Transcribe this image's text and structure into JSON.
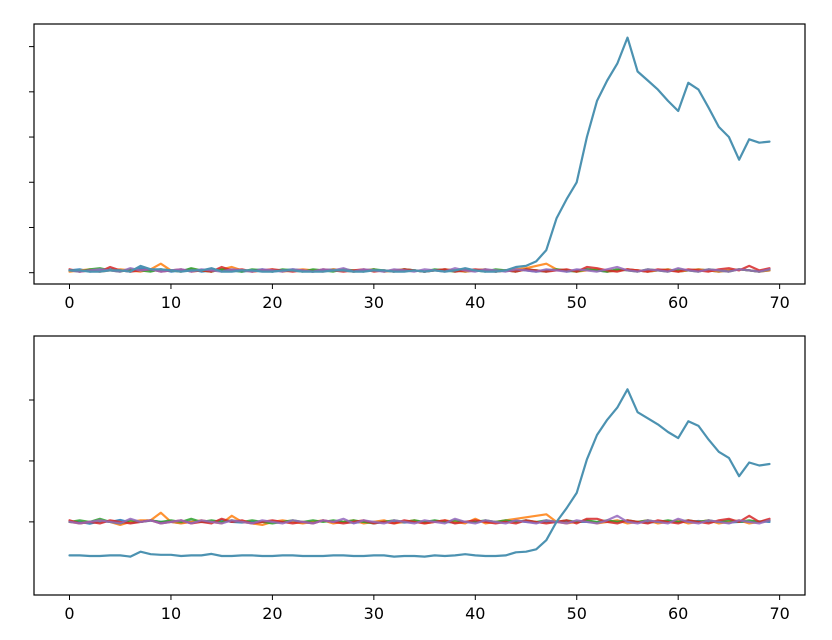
{
  "chart_data": [
    {
      "type": "line",
      "title": "",
      "xlabel": "",
      "ylabel": "",
      "xlim": [
        -3.5,
        72.5
      ],
      "ylim": [
        -1.0,
        22.0
      ],
      "xticks": [
        0,
        10,
        20,
        30,
        40,
        50,
        60,
        70
      ],
      "xtick_labels": [
        "0",
        "10",
        "20",
        "30",
        "40",
        "50",
        "60",
        "70"
      ],
      "yticks": [
        0,
        4,
        8,
        12,
        16,
        20
      ],
      "ytick_labels_visible": false,
      "legend": "none",
      "grid": false,
      "series": [
        {
          "color": "#1f77b4",
          "values": [
            0.2,
            0.3,
            0.1,
            0.2,
            0.3,
            0.2,
            0.1,
            0.4,
            0.2,
            0.3,
            0.1,
            0.2,
            0.3,
            0.1,
            0.2,
            0.3,
            0.2,
            0.1,
            0.2,
            0.3,
            0.1,
            0.2,
            0.3,
            0.2,
            0.1,
            0.2,
            0.3,
            0.2,
            0.1,
            0.2,
            0.3,
            0.1,
            0.2,
            0.3,
            0.2,
            0.1,
            0.2,
            0.3,
            0.2,
            0.1,
            0.2,
            0.3,
            0.1,
            0.2,
            0.3,
            0.2,
            0.1,
            0.2,
            0.3,
            0.1,
            0.2,
            0.3,
            0.2,
            0.1,
            0.2,
            0.3,
            0.2,
            0.1,
            0.2,
            0.3,
            0.1,
            0.2,
            0.3,
            0.2,
            0.1,
            0.2,
            0.3,
            0.2,
            0.1,
            0.2
          ]
        },
        {
          "color": "#ff7f0e",
          "values": [
            0.1,
            0.2,
            0.3,
            0.1,
            0.2,
            0.3,
            0.2,
            0.1,
            0.3,
            0.8,
            0.2,
            0.1,
            0.3,
            0.2,
            0.1,
            0.3,
            0.5,
            0.2,
            0.1,
            0.2,
            0.3,
            0.1,
            0.2,
            0.3,
            0.2,
            0.1,
            0.3,
            0.2,
            0.1,
            0.2,
            0.3,
            0.1,
            0.2,
            0.3,
            0.2,
            0.1,
            0.2,
            0.3,
            0.2,
            0.1,
            0.2,
            0.3,
            0.1,
            0.2,
            0.3,
            0.4,
            0.6,
            0.8,
            0.3,
            0.2,
            0.1,
            0.2,
            0.3,
            0.1,
            0.2,
            0.3,
            0.2,
            0.1,
            0.2,
            0.3,
            0.1,
            0.2,
            0.3,
            0.2,
            0.1,
            0.2,
            0.3,
            0.2,
            0.1,
            0.2
          ]
        },
        {
          "color": "#2ca02c",
          "values": [
            0.2,
            0.1,
            0.3,
            0.4,
            0.2,
            0.1,
            0.3,
            0.2,
            0.1,
            0.3,
            0.2,
            0.1,
            0.4,
            0.2,
            0.1,
            0.3,
            0.2,
            0.1,
            0.3,
            0.2,
            0.1,
            0.3,
            0.2,
            0.1,
            0.3,
            0.2,
            0.1,
            0.3,
            0.2,
            0.1,
            0.3,
            0.2,
            0.1,
            0.3,
            0.2,
            0.1,
            0.3,
            0.2,
            0.1,
            0.3,
            0.2,
            0.1,
            0.3,
            0.2,
            0.1,
            0.3,
            0.2,
            0.1,
            0.3,
            0.2,
            0.1,
            0.3,
            0.2,
            0.1,
            0.3,
            0.2,
            0.1,
            0.3,
            0.2,
            0.1,
            0.3,
            0.2,
            0.1,
            0.3,
            0.2,
            0.1,
            0.3,
            0.2,
            0.1,
            0.3
          ]
        },
        {
          "color": "#d62728",
          "values": [
            0.3,
            0.1,
            0.2,
            0.1,
            0.5,
            0.2,
            0.1,
            0.2,
            0.3,
            0.1,
            0.2,
            0.3,
            0.1,
            0.2,
            0.1,
            0.5,
            0.2,
            0.3,
            0.1,
            0.2,
            0.3,
            0.2,
            0.1,
            0.2,
            0.1,
            0.3,
            0.2,
            0.1,
            0.2,
            0.3,
            0.1,
            0.2,
            0.1,
            0.3,
            0.2,
            0.1,
            0.2,
            0.3,
            0.1,
            0.2,
            0.3,
            0.2,
            0.1,
            0.2,
            0.1,
            0.3,
            0.2,
            0.1,
            0.2,
            0.3,
            0.1,
            0.5,
            0.4,
            0.2,
            0.1,
            0.3,
            0.2,
            0.1,
            0.3,
            0.2,
            0.1,
            0.3,
            0.2,
            0.1,
            0.3,
            0.4,
            0.2,
            0.6,
            0.2,
            0.4
          ]
        },
        {
          "color": "#9467bd",
          "values": [
            0.2,
            0.1,
            0.2,
            0.3,
            0.2,
            0.1,
            0.4,
            0.2,
            0.3,
            0.1,
            0.2,
            0.3,
            0.1,
            0.3,
            0.2,
            0.1,
            0.3,
            0.2,
            0.1,
            0.3,
            0.2,
            0.1,
            0.3,
            0.2,
            0.1,
            0.3,
            0.2,
            0.4,
            0.1,
            0.3,
            0.2,
            0.1,
            0.3,
            0.2,
            0.1,
            0.3,
            0.2,
            0.1,
            0.4,
            0.2,
            0.1,
            0.3,
            0.2,
            0.1,
            0.3,
            0.2,
            0.1,
            0.3,
            0.2,
            0.1,
            0.3,
            0.2,
            0.1,
            0.3,
            0.5,
            0.2,
            0.1,
            0.3,
            0.2,
            0.1,
            0.4,
            0.2,
            0.1,
            0.3,
            0.2,
            0.1,
            0.3,
            0.2,
            0.1,
            0.3
          ]
        },
        {
          "color": "#4c92b1",
          "values": [
            0.2,
            0.2,
            0.1,
            0.1,
            0.2,
            0.2,
            0.1,
            0.6,
            0.3,
            0.3,
            0.2,
            0.1,
            0.2,
            0.2,
            0.4,
            0.1,
            0.1,
            0.2,
            0.2,
            0.1,
            0.1,
            0.2,
            0.2,
            0.1,
            0.1,
            0.1,
            0.2,
            0.2,
            0.1,
            0.1,
            0.2,
            0.2,
            0.1,
            0.1,
            0.2,
            0.1,
            0.2,
            0.1,
            0.2,
            0.4,
            0.2,
            0.1,
            0.1,
            0.2,
            0.5,
            0.6,
            1.0,
            2.0,
            4.8,
            6.5,
            8.0,
            12.0,
            15.2,
            17.0,
            18.5,
            20.8,
            17.8,
            17.0,
            16.2,
            15.2,
            14.3,
            16.8,
            16.2,
            14.6,
            12.9,
            12.0,
            10.0,
            11.8,
            11.5,
            11.6
          ]
        }
      ]
    },
    {
      "type": "line",
      "title": "",
      "xlabel": "",
      "ylabel": "",
      "xlim": [
        -3.5,
        72.5
      ],
      "ylim": [
        -2.4,
        6.1
      ],
      "xticks": [
        0,
        10,
        20,
        30,
        40,
        50,
        60,
        70
      ],
      "xtick_labels": [
        "0",
        "10",
        "20",
        "30",
        "40",
        "50",
        "60",
        "70"
      ],
      "yticks": [
        0,
        2,
        4
      ],
      "ytick_labels_visible": false,
      "legend": "none",
      "grid": false,
      "series": [
        {
          "color": "#1f77b4",
          "values": [
            0.0,
            0.0,
            -0.06,
            0.02,
            0.0,
            0.06,
            -0.02,
            0.0,
            0.04,
            0.0,
            0.0,
            -0.04,
            0.02,
            0.0,
            0.0,
            0.05,
            0.0,
            -0.02,
            0.0,
            0.0,
            0.02,
            0.0,
            0.0,
            -0.02,
            0.0,
            0.04,
            0.0,
            0.0,
            -0.03,
            0.0,
            0.0,
            0.02,
            0.0,
            -0.02,
            0.0,
            0.0,
            0.03,
            0.0,
            -0.02,
            0.0,
            0.0,
            0.02,
            0.0,
            0.0,
            0.03,
            0.0,
            -0.02,
            0.0,
            0.0,
            0.02,
            0.0,
            0.0,
            -0.02,
            0.0,
            0.04,
            0.0,
            0.0,
            -0.02,
            0.0,
            0.02,
            0.0,
            0.0,
            0.03,
            0.0,
            0.0,
            -0.02,
            0.0,
            0.0,
            0.02,
            0.0
          ]
        },
        {
          "color": "#ff7f0e",
          "values": [
            0.0,
            -0.05,
            0.0,
            0.05,
            0.0,
            -0.1,
            0.0,
            0.05,
            0.05,
            0.3,
            0.0,
            -0.05,
            0.0,
            0.05,
            0.0,
            -0.05,
            0.2,
            0.0,
            -0.05,
            -0.1,
            0.0,
            0.05,
            0.0,
            -0.05,
            0.0,
            0.05,
            -0.05,
            0.0,
            0.05,
            -0.05,
            0.0,
            0.05,
            -0.05,
            0.0,
            0.05,
            -0.05,
            0.0,
            0.05,
            0.0,
            -0.05,
            0.1,
            -0.05,
            0.0,
            0.05,
            0.1,
            0.15,
            0.2,
            0.25,
            0.0,
            -0.05,
            0.0,
            0.05,
            -0.05,
            0.0,
            0.05,
            -0.05,
            0.0,
            0.05,
            -0.05,
            0.0,
            0.05,
            -0.05,
            0.0,
            0.05,
            -0.05,
            0.0,
            0.05,
            -0.05,
            0.0,
            0.05
          ]
        },
        {
          "color": "#2ca02c",
          "values": [
            0.0,
            0.05,
            0.0,
            0.1,
            0.0,
            -0.05,
            0.05,
            0.0,
            0.05,
            0.0,
            0.05,
            0.0,
            0.1,
            0.0,
            0.05,
            0.0,
            0.05,
            0.0,
            0.05,
            0.0,
            -0.05,
            0.0,
            0.05,
            0.0,
            0.05,
            0.0,
            0.05,
            0.0,
            0.05,
            0.0,
            -0.05,
            0.0,
            0.05,
            0.0,
            0.05,
            0.0,
            0.05,
            0.0,
            0.05,
            0.0,
            0.0,
            0.05,
            0.0,
            0.05,
            0.0,
            0.05,
            0.0,
            0.05,
            0.0,
            0.05,
            0.0,
            0.05,
            0.0,
            0.05,
            0.0,
            0.05,
            0.0,
            0.05,
            0.0,
            0.05,
            0.0,
            0.05,
            0.0,
            0.05,
            0.0,
            0.05,
            0.0,
            0.05,
            0.0,
            0.05
          ]
        },
        {
          "color": "#d62728",
          "values": [
            0.05,
            -0.05,
            0.0,
            -0.05,
            0.05,
            0.0,
            -0.05,
            0.0,
            0.05,
            -0.05,
            0.0,
            0.05,
            -0.05,
            0.0,
            -0.05,
            0.1,
            0.0,
            0.05,
            -0.05,
            0.0,
            0.05,
            0.0,
            -0.05,
            0.0,
            -0.05,
            0.05,
            0.0,
            -0.05,
            0.0,
            0.05,
            -0.05,
            0.0,
            -0.05,
            0.05,
            0.0,
            -0.05,
            0.0,
            0.05,
            -0.05,
            0.0,
            0.05,
            0.0,
            -0.05,
            0.0,
            -0.05,
            0.05,
            0.0,
            -0.05,
            0.0,
            0.05,
            -0.05,
            0.1,
            0.1,
            0.0,
            -0.05,
            0.05,
            0.0,
            -0.05,
            0.05,
            0.0,
            -0.05,
            0.05,
            0.0,
            -0.05,
            0.05,
            0.1,
            0.0,
            0.2,
            0.0,
            0.1
          ]
        },
        {
          "color": "#9467bd",
          "values": [
            0.0,
            -0.05,
            0.0,
            0.05,
            0.0,
            -0.05,
            0.1,
            0.0,
            0.05,
            -0.05,
            0.0,
            0.05,
            -0.05,
            0.05,
            0.0,
            -0.05,
            0.05,
            0.0,
            -0.05,
            0.05,
            0.0,
            -0.05,
            0.05,
            0.0,
            -0.05,
            0.05,
            0.0,
            0.1,
            -0.05,
            0.05,
            0.0,
            -0.05,
            0.05,
            0.0,
            -0.05,
            0.05,
            0.0,
            -0.05,
            0.1,
            0.0,
            -0.05,
            0.05,
            0.0,
            -0.05,
            0.05,
            0.0,
            -0.05,
            0.05,
            0.0,
            -0.05,
            0.05,
            0.0,
            -0.05,
            0.05,
            0.2,
            0.0,
            -0.05,
            0.05,
            0.0,
            -0.05,
            0.1,
            0.0,
            -0.05,
            0.05,
            0.0,
            -0.05,
            0.05,
            0.0,
            -0.05,
            0.05
          ]
        },
        {
          "color": "#4c92b1",
          "values": [
            -1.1,
            -1.1,
            -1.12,
            -1.12,
            -1.1,
            -1.1,
            -1.14,
            -0.98,
            -1.06,
            -1.08,
            -1.08,
            -1.12,
            -1.1,
            -1.1,
            -1.05,
            -1.12,
            -1.12,
            -1.1,
            -1.1,
            -1.12,
            -1.12,
            -1.1,
            -1.1,
            -1.12,
            -1.12,
            -1.12,
            -1.1,
            -1.1,
            -1.12,
            -1.12,
            -1.1,
            -1.1,
            -1.14,
            -1.12,
            -1.12,
            -1.14,
            -1.1,
            -1.12,
            -1.1,
            -1.06,
            -1.1,
            -1.12,
            -1.12,
            -1.1,
            -1.0,
            -0.98,
            -0.9,
            -0.6,
            0.0,
            0.45,
            0.95,
            2.05,
            2.85,
            3.35,
            3.75,
            4.35,
            3.6,
            3.4,
            3.2,
            2.95,
            2.75,
            3.3,
            3.15,
            2.7,
            2.3,
            2.1,
            1.5,
            1.95,
            1.85,
            1.9
          ]
        }
      ]
    }
  ],
  "panels_meta": [
    {
      "label_top": "",
      "label_bottom": ""
    },
    {
      "label_top": "",
      "label_bottom": ""
    }
  ]
}
